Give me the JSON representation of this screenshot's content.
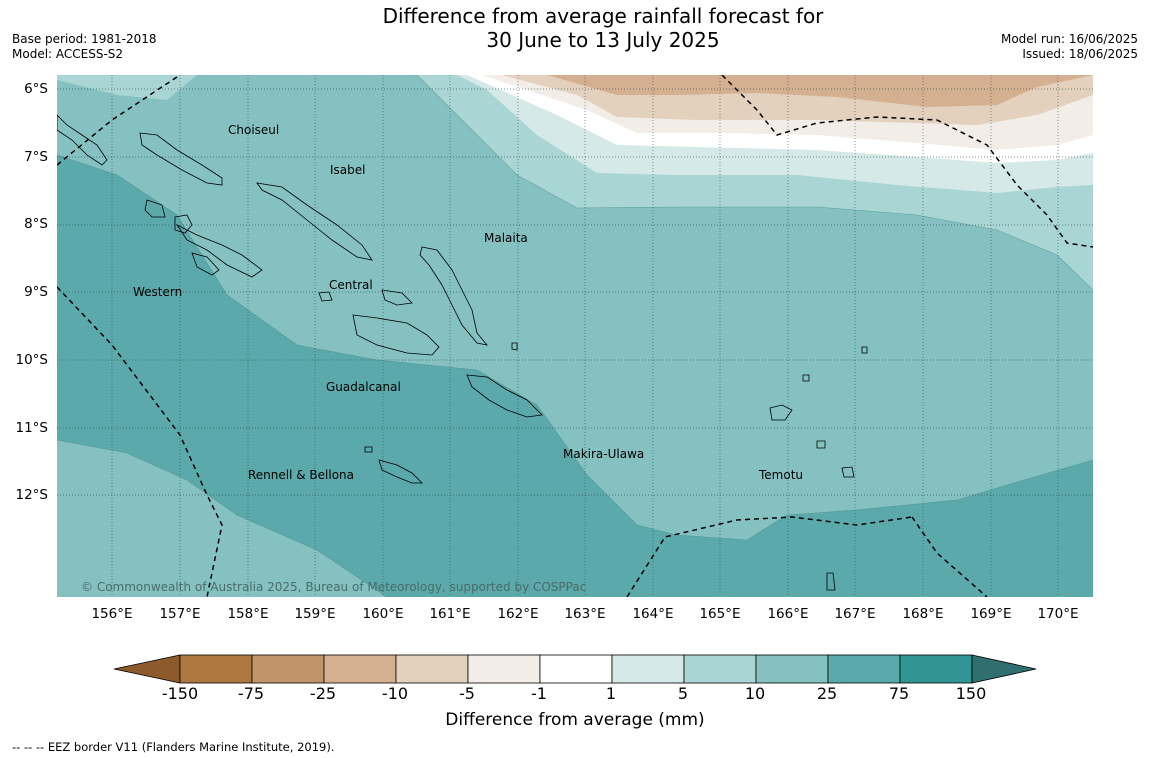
{
  "title": {
    "line1": "Difference from average rainfall forecast for",
    "line2": "30 June to 13 July 2025"
  },
  "meta": {
    "base_period": "Base period: 1981-2018",
    "model": "Model: ACCESS-S2",
    "model_run": "Model run: 16/06/2025",
    "issued": "Issued: 18/06/2025"
  },
  "map": {
    "lat_labels": [
      "6°S",
      "7°S",
      "8°S",
      "9°S",
      "10°S",
      "11°S",
      "12°S"
    ],
    "lon_labels": [
      "156°E",
      "157°E",
      "158°E",
      "159°E",
      "160°E",
      "161°E",
      "162°E",
      "163°E",
      "164°E",
      "165°E",
      "166°E",
      "167°E",
      "168°E",
      "169°E",
      "170°E"
    ],
    "regions": [
      "Choiseul",
      "Isabel",
      "Malaita",
      "Western",
      "Central",
      "Guadalcanal",
      "Makira-Ulawa",
      "Rennell & Bellona",
      "Temotu"
    ],
    "copyright": "© Commonwealth of Australia 2025, Bureau of Meteorology, supported by COSPPac",
    "colors": {
      "land_outline": "#000000",
      "grid": "#2a4a4a"
    }
  },
  "colorbar": {
    "ticks": [
      "-150",
      "-75",
      "-25",
      "-10",
      "-5",
      "-1",
      "1",
      "5",
      "10",
      "25",
      "75",
      "150"
    ],
    "colors": {
      "below_-150": "#8c5a2b",
      "-150_-75": "#ad7840",
      "-75_-25": "#c29469",
      "-25_-10": "#d4b090",
      "-10_-5": "#e3d0bd",
      "-5_-1": "#f3ede7",
      "-1_1": "#ffffff",
      "1_5": "#d4e9e8",
      "5_10": "#a9d6d5",
      "10_25": "#84c1c0",
      "25_75": "#5ba9aa",
      "75_150": "#319595",
      "above_150": "#2f6f6f"
    },
    "title": "Difference from average (mm)"
  },
  "footer": "--  --  -- EEZ border V11 (Flanders Marine Institute, 2019)."
}
